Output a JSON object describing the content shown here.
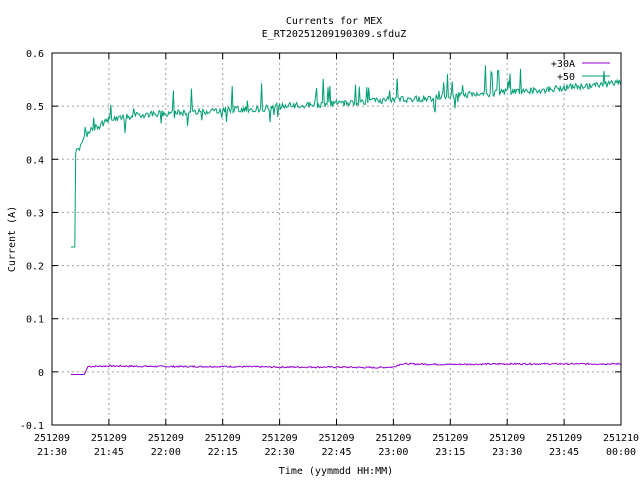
{
  "chart_data": {
    "type": "line",
    "title": "Currents for MEX",
    "subtitle": "E_RT20251209190309.sfduZ",
    "xlabel": "Time (yymmdd HH:MM)",
    "ylabel": "Current (A)",
    "ylim": [
      -0.1,
      0.6
    ],
    "yticks": [
      -0.1,
      0,
      0.1,
      0.2,
      0.3,
      0.4,
      0.5,
      0.6
    ],
    "ytick_labels": [
      "-0.1",
      "0",
      "0.1",
      "0.2",
      "0.3",
      "0.4",
      "0.5",
      "0.6"
    ],
    "xlim_minutes": [
      1290,
      1440
    ],
    "xticks": [
      {
        "minute": 1290,
        "date": "251209",
        "time": "21:30"
      },
      {
        "minute": 1305,
        "date": "251209",
        "time": "21:45"
      },
      {
        "minute": 1320,
        "date": "251209",
        "time": "22:00"
      },
      {
        "minute": 1335,
        "date": "251209",
        "time": "22:15"
      },
      {
        "minute": 1350,
        "date": "251209",
        "time": "22:30"
      },
      {
        "minute": 1365,
        "date": "251209",
        "time": "22:45"
      },
      {
        "minute": 1380,
        "date": "251209",
        "time": "23:00"
      },
      {
        "minute": 1395,
        "date": "251209",
        "time": "23:15"
      },
      {
        "minute": 1410,
        "date": "251209",
        "time": "23:30"
      },
      {
        "minute": 1425,
        "date": "251209",
        "time": "23:45"
      },
      {
        "minute": 1440,
        "date": "251210",
        "time": "00:00"
      }
    ],
    "grid": true,
    "legend_position": "top-right",
    "series": [
      {
        "name": "+30A",
        "color": "#9400d3",
        "x_minutes": [
          1295,
          1298.5,
          1299.5,
          1305,
          1320,
          1335,
          1350,
          1365,
          1375,
          1380,
          1382,
          1395,
          1410,
          1425,
          1440
        ],
        "y": [
          -0.005,
          -0.005,
          0.01,
          0.011,
          0.01,
          0.01,
          0.009,
          0.009,
          0.008,
          0.009,
          0.015,
          0.014,
          0.015,
          0.015,
          0.015
        ]
      },
      {
        "name": "+50",
        "color": "#009e73",
        "x_minutes": [
          1295,
          1296,
          1296.2,
          1296.5,
          1297,
          1298,
          1299,
          1300,
          1303,
          1305,
          1310,
          1315,
          1320,
          1330,
          1335,
          1345,
          1350,
          1360,
          1365,
          1375,
          1380,
          1390,
          1395,
          1405,
          1410,
          1420,
          1425,
          1435,
          1440
        ],
        "y": [
          0.235,
          0.235,
          0.41,
          0.42,
          0.42,
          0.43,
          0.445,
          0.455,
          0.465,
          0.475,
          0.48,
          0.485,
          0.487,
          0.49,
          0.493,
          0.495,
          0.5,
          0.502,
          0.505,
          0.51,
          0.512,
          0.515,
          0.52,
          0.523,
          0.527,
          0.53,
          0.535,
          0.54,
          0.545
        ]
      }
    ]
  }
}
